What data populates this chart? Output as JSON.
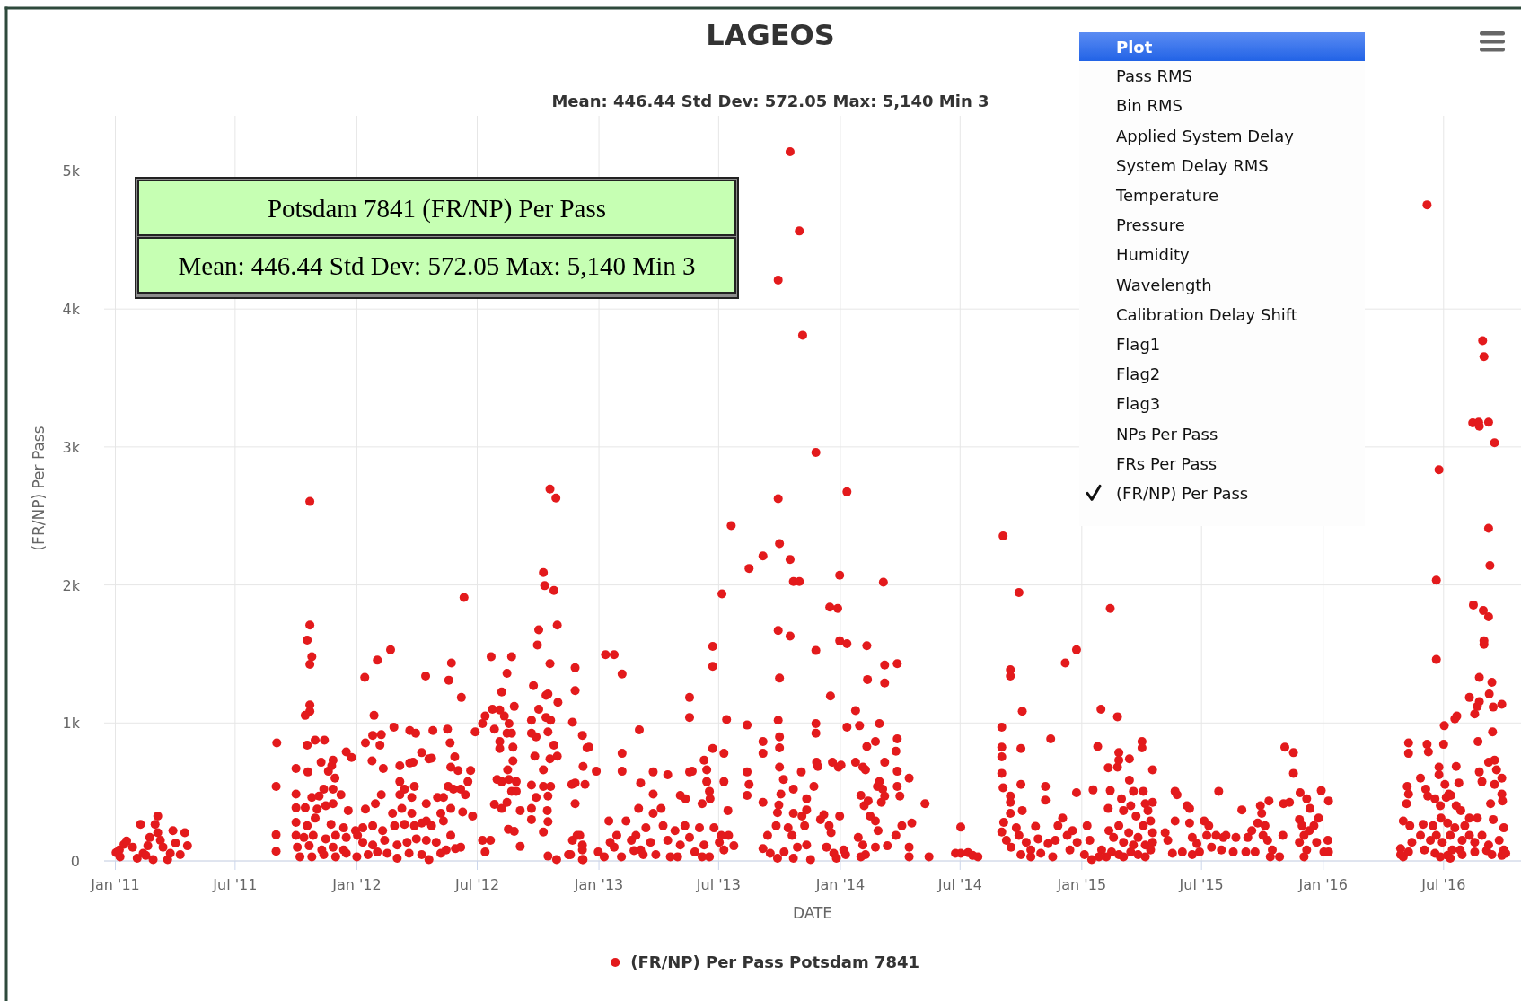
{
  "chart_data": {
    "type": "scatter",
    "title": "LAGEOS",
    "subtitle": "Mean: 446.44 Std Dev: 572.05 Max: 5,140 Min 3",
    "xlabel": "DATE",
    "ylabel": "(FR/NP) Per Pass",
    "annotations": [
      "Potsdam 7841 (FR/NP) Per Pass",
      "Mean: 446.44 Std Dev: 572.05 Max: 5,140 Min 3",
      "Plot",
      "Pass RMS",
      "Bin RMS",
      "Applied System Delay",
      "System Delay RMS",
      "Temperature",
      "Pressure",
      "Humidity",
      "Wavelength",
      "Calibration Delay Shift",
      "Flag1",
      "Flag2",
      "Flag3",
      "NPs Per Pass",
      "FRs Per Pass",
      "(FR/NP) Per Pass"
    ],
    "xlim": [
      "2010-12-15",
      "2016-10-26"
    ],
    "xticks": [
      {
        "value": "2011-01",
        "label": "Jan '11"
      },
      {
        "value": "2011-07",
        "label": "Jul '11"
      },
      {
        "value": "2012-01",
        "label": "Jan '12"
      },
      {
        "value": "2012-07",
        "label": "Jul '12"
      },
      {
        "value": "2013-01",
        "label": "Jan '13"
      },
      {
        "value": "2013-07",
        "label": "Jul '13"
      },
      {
        "value": "2014-01",
        "label": "Jan '14"
      },
      {
        "value": "2014-07",
        "label": "Jul '14"
      },
      {
        "value": "2015-01",
        "label": "Jan '15"
      },
      {
        "value": "2015-07",
        "label": "Jul '15"
      },
      {
        "value": "2016-01",
        "label": "Jan '16"
      },
      {
        "value": "2016-07",
        "label": "Jul '16"
      }
    ],
    "ylim": [
      0,
      5400
    ],
    "yticks": [
      0,
      {
        "value": 1000,
        "label": "1k"
      },
      {
        "value": 2000,
        "label": "2k"
      },
      {
        "value": 3000,
        "label": "3k"
      },
      {
        "value": 4000,
        "label": "4k"
      },
      {
        "value": 5000,
        "label": "5k"
      }
    ],
    "grid": true,
    "legend": "bottom",
    "marker": "circle",
    "series": [
      {
        "name": "(FR/NP) Per Pass Potsdam 7841",
        "color": "#e31a1c",
        "x": [
          "2011-01-02",
          "2011-01-07",
          "2011-01-08",
          "2011-01-14",
          "2011-01-18",
          "2011-01-27",
          "2011-02-03",
          "2011-02-08",
          "2011-02-12",
          "2011-02-16",
          "2011-02-19",
          "2011-02-22",
          "2011-02-27",
          "2011-03-02",
          "2011-03-06",
          "2011-03-06",
          "2011-03-10",
          "2011-03-14",
          "2011-03-21",
          "2011-03-25",
          "2011-03-29",
          "2011-04-02",
          "2011-04-09",
          "2011-04-16",
          "2011-04-20",
          "2011-09-02",
          "2011-09-01",
          "2011-09-01",
          "2011-09-01",
          "2011-10-22",
          "2011-10-22",
          "2011-10-18",
          "2011-10-25",
          "2011-10-22",
          "2011-10-22",
          "2011-10-22",
          "2011-10-15",
          "2011-10-18",
          "2011-10-30",
          "2011-11-13",
          "2011-10-01",
          "2011-10-19",
          "2011-11-08",
          "2011-11-19",
          "2011-11-26",
          "2011-10-01",
          "2011-10-25",
          "2011-11-05",
          "2011-11-12",
          "2011-11-29",
          "2011-11-26",
          "2011-12-08",
          "2011-10-01",
          "2011-10-15",
          "2011-11-02",
          "2011-11-15",
          "2011-11-26",
          "2011-12-19",
          "2011-10-01",
          "2011-10-18",
          "2011-10-30",
          "2011-11-23",
          "2011-12-12",
          "2011-10-01",
          "2011-10-13",
          "2011-10-27",
          "2011-11-15",
          "2011-11-30",
          "2011-12-16",
          "2011-12-30",
          "2011-10-03",
          "2011-10-21",
          "2011-11-09",
          "2011-11-26",
          "2011-12-12",
          "2012-01-02",
          "2011-10-07",
          "2011-10-25",
          "2011-11-12",
          "2011-11-30",
          "2011-12-16",
          "2012-01-01",
          "2011-12-16",
          "2011-12-24",
          "2011-11-24",
          "2012-01-13",
          "2012-02-01",
          "2012-02-21",
          "2012-01-27",
          "2012-01-14",
          "2012-01-25",
          "2012-02-07",
          "2012-02-05",
          "2012-02-26",
          "2012-01-24",
          "2012-02-10",
          "2012-03-06",
          "2012-03-21",
          "2012-03-30",
          "2012-04-25",
          "2012-04-14",
          "2012-05-23",
          "2012-05-19",
          "2012-05-17",
          "2012-05-21",
          "2012-05-28",
          "2012-05-22",
          "2012-06-07",
          "2012-06-11",
          "2012-06-02",
          "2012-06-21",
          "2012-03-21",
          "2012-03-26",
          "2012-04-08",
          "2012-04-19",
          "2012-04-23",
          "2012-03-06",
          "2012-03-13",
          "2012-03-28",
          "2012-03-06",
          "2012-03-24",
          "2012-04-15",
          "2012-05-02",
          "2012-05-11",
          "2012-05-18",
          "2012-05-26",
          "2012-06-06",
          "2012-06-13",
          "2012-06-17",
          "2012-01-14",
          "2012-01-29",
          "2012-02-07",
          "2012-02-24",
          "2012-03-09",
          "2012-03-24",
          "2012-04-15",
          "2012-05-07",
          "2012-05-22",
          "2012-06-09",
          "2012-06-24",
          "2012-01-10",
          "2012-01-25",
          "2012-02-09",
          "2012-02-27",
          "2012-03-13",
          "2012-03-28",
          "2012-04-08",
          "2012-04-23",
          "2012-05-11",
          "2012-05-22",
          "2012-06-06",
          "2012-01-10",
          "2012-01-25",
          "2012-02-12",
          "2012-03-02",
          "2012-03-17",
          "2012-03-31",
          "2012-04-15",
          "2012-04-30",
          "2012-05-15",
          "2012-05-29",
          "2012-01-18",
          "2012-02-01",
          "2012-02-16",
          "2012-03-02",
          "2012-03-20",
          "2012-04-08",
          "2012-04-19",
          "2012-05-07",
          "2012-07-09",
          "2012-06-28",
          "2012-07-13",
          "2012-07-24",
          "2012-08-04",
          "2012-08-11",
          "2012-08-18",
          "2012-08-22",
          "2012-07-22",
          "2012-08-22",
          "2012-08-15",
          "2012-08-07",
          "2012-08-26",
          "2012-07-27",
          "2012-08-04",
          "2012-08-04",
          "2012-08-15",
          "2012-08-24",
          "2012-08-24",
          "2012-08-16",
          "2012-07-31",
          "2012-08-07",
          "2012-08-18",
          "2012-08-29",
          "2012-07-27",
          "2012-08-07",
          "2012-08-15",
          "2012-08-22",
          "2012-08-29",
          "2012-09-04",
          "2012-08-17",
          "2012-08-26",
          "2012-09-04",
          "2012-07-09",
          "2012-07-21",
          "2012-07-13",
          "2012-09-24",
          "2012-09-30",
          "2012-10-02",
          "2012-10-09",
          "2012-10-11",
          "2012-10-25",
          "2012-10-30",
          "2012-10-19",
          "2012-10-28",
          "2012-10-19",
          "2012-10-13",
          "2012-10-16",
          "2012-10-31",
          "2012-10-02",
          "2012-09-21",
          "2012-10-13",
          "2012-10-20",
          "2012-09-21",
          "2012-09-28",
          "2012-10-16",
          "2012-10-25",
          "2012-10-30",
          "2012-09-26",
          "2012-10-09",
          "2012-10-19",
          "2012-09-21",
          "2012-09-28",
          "2012-09-21",
          "2012-09-21",
          "2012-10-09",
          "2012-10-20",
          "2012-10-16",
          "2012-10-15",
          "2012-10-16",
          "2012-10-09",
          "2012-10-16",
          "2012-10-29",
          "2012-11-19",
          "2012-11-26",
          "2012-11-26",
          "2012-11-22",
          "2012-12-07",
          "2012-11-26",
          "2012-11-26",
          "2012-12-03",
          "2012-12-07",
          "2012-12-08",
          "2012-11-22",
          "2012-12-08",
          "2012-12-14",
          "2012-12-17",
          "2012-12-28",
          "2012-12-11",
          "2012-11-21",
          "2012-11-29",
          "2012-12-07",
          "2012-12-07",
          "2012-11-16",
          "2012-12-31",
          "2013-01-09",
          "2013-01-11",
          "2013-01-24",
          "2013-02-05",
          "2013-02-05",
          "2013-02-05",
          "2013-03-03",
          "2013-03-05",
          "2013-03-24",
          "2013-04-15",
          "2013-03-24",
          "2013-04-05",
          "2013-05-04",
          "2013-05-12",
          "2013-05-18",
          "2013-05-18",
          "2013-05-18",
          "2013-05-22",
          "2013-06-06",
          "2013-06-09",
          "2013-06-13",
          "2013-06-13",
          "2013-06-17",
          "2013-06-18",
          "2013-06-22",
          "2013-06-22",
          "2013-06-22",
          "2013-07-06",
          "2013-07-09",
          "2013-07-13",
          "2013-07-15",
          "2013-07-20",
          "2013-07-09",
          "2013-01-16",
          "2013-01-28",
          "2013-01-24",
          "2013-02-11",
          "2013-02-04",
          "2013-02-19",
          "2013-03-02",
          "2013-02-26",
          "2013-03-05",
          "2013-03-13",
          "2013-03-20",
          "2013-03-28",
          "2013-03-24",
          "2013-04-08",
          "2013-04-15",
          "2013-04-19",
          "2013-04-26",
          "2013-05-04",
          "2013-05-11",
          "2013-05-18",
          "2013-05-26",
          "2013-06-02",
          "2013-06-09",
          "2013-06-17",
          "2013-06-24",
          "2013-07-02",
          "2013-07-09",
          "2013-07-16",
          "2013-07-24",
          "2013-01-18",
          "2013-03-09",
          "2013-04-30",
          "2013-06-06",
          "2013-07-05",
          "2013-02-23",
          "2013-10-17",
          "2013-10-31",
          "2013-09-29",
          "2013-11-05",
          "2013-11-25",
          "2014-01-11",
          "2013-09-29",
          "2013-10-01",
          "2013-09-06",
          "2013-08-16",
          "2013-10-17",
          "2013-10-22",
          "2013-10-31",
          "2013-12-31",
          "2014-03-07",
          "2013-12-16",
          "2013-12-28",
          "2013-09-29",
          "2013-10-17",
          "2013-11-25",
          "2013-12-31",
          "2014-01-11",
          "2014-02-10",
          "2014-03-09",
          "2014-03-28",
          "2014-03-09",
          "2014-02-11",
          "2013-10-01",
          "2013-12-17",
          "2013-08-13",
          "2013-09-29",
          "2013-11-25",
          "2013-11-25",
          "2014-01-11",
          "2014-01-30",
          "2014-01-24",
          "2014-03-01",
          "2013-09-06",
          "2013-09-06",
          "2013-10-01",
          "2013-10-01",
          "2014-02-10",
          "2014-02-23",
          "2014-03-28",
          "2014-03-26",
          "2013-08-13",
          "2013-08-16",
          "2013-08-13",
          "2013-09-06",
          "2013-10-01",
          "2013-10-07",
          "2013-10-03",
          "2013-09-30",
          "2013-09-28",
          "2013-09-26",
          "2013-09-13",
          "2013-09-06",
          "2013-09-17",
          "2013-09-28",
          "2013-10-08",
          "2013-10-14",
          "2013-10-22",
          "2013-10-22",
          "2013-10-20",
          "2013-10-28",
          "2013-10-22",
          "2013-11-03",
          "2013-11-04",
          "2013-11-08",
          "2013-11-11",
          "2013-11-11",
          "2013-11-11",
          "2013-11-17",
          "2013-11-22",
          "2013-11-26",
          "2013-11-28",
          "2013-12-02",
          "2013-12-07",
          "2013-12-11",
          "2013-12-15",
          "2013-12-18",
          "2013-12-20",
          "2013-12-29",
          "2014-01-02",
          "2013-12-31",
          "2013-12-22",
          "2013-12-26",
          "2014-01-06",
          "2014-01-09",
          "2014-01-24",
          "2014-02-04",
          "2014-02-08",
          "2014-02-01",
          "2014-02-06",
          "2014-02-12",
          "2014-02-15",
          "2014-01-28",
          "2014-02-04",
          "2014-02-08",
          "2014-02-01",
          "2014-02-23",
          "2014-02-26",
          "2014-03-01",
          "2014-03-06",
          "2014-03-09",
          "2014-03-04",
          "2014-02-23",
          "2014-02-27",
          "2014-03-13",
          "2014-03-09",
          "2014-03-28",
          "2014-04-01",
          "2014-03-28",
          "2014-04-04",
          "2014-03-26",
          "2014-04-15",
          "2014-04-19",
          "2014-04-15",
          "2014-04-15",
          "2014-05-09",
          "2014-05-15",
          "2014-07-02",
          "2014-06-24",
          "2014-07-02",
          "2014-07-13",
          "2014-07-20",
          "2014-07-28",
          "2014-09-04",
          "2014-09-28",
          "2014-09-15",
          "2014-09-15",
          "2014-10-03",
          "2014-09-02",
          "2014-09-02",
          "2014-09-02",
          "2014-09-02",
          "2014-09-04",
          "2014-09-15",
          "2014-09-15",
          "2014-09-15",
          "2014-09-05",
          "2014-09-02",
          "2014-10-01",
          "2014-10-01",
          "2014-10-03",
          "2014-09-09",
          "2014-09-16",
          "2014-09-28",
          "2014-10-01",
          "2014-10-09",
          "2014-10-16",
          "2014-10-23",
          "2014-10-27",
          "2014-10-31",
          "2014-11-07",
          "2014-11-07",
          "2014-11-11",
          "2014-11-15",
          "2014-11-18",
          "2014-11-22",
          "2014-11-26",
          "2014-12-03",
          "2014-12-07",
          "2014-12-10",
          "2014-12-14",
          "2014-12-18",
          "2014-12-24",
          "2014-12-24",
          "2014-12-25",
          "2015-01-05",
          "2015-01-09",
          "2015-01-13",
          "2015-01-16",
          "2014-10-16",
          "2014-09-24",
          "2015-01-30",
          "2015-02-13",
          "2015-02-24",
          "2015-01-25",
          "2015-01-18",
          "2015-02-10",
          "2015-02-24",
          "2015-02-26",
          "2015-02-26",
          "2015-03-14",
          "2015-03-14",
          "2015-04-02",
          "2015-04-02",
          "2015-04-04",
          "2015-04-18",
          "2015-02-10",
          "2015-02-13",
          "2015-03-02",
          "2015-03-05",
          "2015-03-16",
          "2015-03-20",
          "2015-03-24",
          "2015-04-07",
          "2015-04-11",
          "2015-04-18",
          "2015-04-15",
          "2015-04-04",
          "2015-04-18",
          "2015-02-11",
          "2015-02-18",
          "2015-02-26",
          "2015-03-05",
          "2015-03-13",
          "2015-03-20",
          "2015-03-27",
          "2015-04-07",
          "2015-04-18",
          "2015-01-31",
          "2015-02-07",
          "2015-02-15",
          "2015-02-26",
          "2015-03-05",
          "2015-03-16",
          "2015-03-27",
          "2015-04-07",
          "2015-04-15",
          "2015-01-27",
          "2015-05-07",
          "2015-05-11",
          "2015-05-18",
          "2015-05-22",
          "2015-05-25",
          "2015-05-22",
          "2015-06-02",
          "2015-06-09",
          "2015-06-13",
          "2015-06-13",
          "2015-06-17",
          "2015-06-17",
          "2015-06-24",
          "2015-06-28",
          "2015-07-05",
          "2015-07-09",
          "2015-07-12",
          "2015-07-16",
          "2015-07-23",
          "2015-07-27",
          "2015-07-31",
          "2015-08-03",
          "2015-08-07",
          "2015-08-18",
          "2015-08-22",
          "2015-08-31",
          "2015-09-06",
          "2015-09-09",
          "2015-09-15",
          "2015-09-20",
          "2015-09-24",
          "2015-09-28",
          "2015-09-30",
          "2015-10-02",
          "2015-10-05",
          "2015-10-09",
          "2015-10-11",
          "2015-10-13",
          "2015-10-16",
          "2015-10-27",
          "2015-11-01",
          "2015-11-02",
          "2015-11-04",
          "2015-11-11",
          "2015-11-17",
          "2015-11-17",
          "2015-11-26",
          "2015-11-27",
          "2015-11-30",
          "2015-12-03",
          "2015-12-07",
          "2015-12-07",
          "2015-12-11",
          "2015-12-12",
          "2015-12-18",
          "2015-12-22",
          "2015-12-25",
          "2015-12-29",
          "2016-01-02",
          "2016-01-08",
          "2016-01-09",
          "2016-01-09",
          "2015-11-26",
          "2015-12-03",
          "2016-06-06",
          "2016-08-29",
          "2016-08-31",
          "2016-08-14",
          "2016-08-23",
          "2016-08-24",
          "2016-09-07",
          "2016-09-16",
          "2016-06-24",
          "2016-09-07",
          "2016-09-09",
          "2016-06-20",
          "2016-08-15",
          "2016-08-30",
          "2016-09-07",
          "2016-08-31",
          "2016-08-31",
          "2016-06-20",
          "2016-08-24",
          "2016-09-12",
          "2016-08-09",
          "2016-08-24",
          "2016-08-21",
          "2016-08-17",
          "2016-09-08",
          "2016-09-14",
          "2016-09-27",
          "2016-07-21",
          "2016-07-18",
          "2016-07-02",
          "2016-08-22",
          "2016-09-13",
          "2016-05-09",
          "2016-05-09",
          "2016-06-06",
          "2016-06-08",
          "2016-07-01",
          "2016-06-24",
          "2016-06-24",
          "2016-07-20",
          "2016-05-27",
          "2016-05-07",
          "2016-05-09",
          "2016-06-04",
          "2016-06-07",
          "2016-07-03",
          "2016-07-09",
          "2016-07-24",
          "2016-06-18",
          "2016-06-26",
          "2016-07-05",
          "2016-07-12",
          "2016-07-20",
          "2016-07-27",
          "2016-08-24",
          "2016-08-28",
          "2016-09-07",
          "2016-09-16",
          "2016-09-19",
          "2016-09-27",
          "2016-09-16",
          "2016-09-27",
          "2016-09-10",
          "2016-09-28",
          "2016-05-06",
          "2016-05-01",
          "2016-05-11",
          "2016-05-31",
          "2016-06-15",
          "2016-06-27",
          "2016-07-07",
          "2016-07-18",
          "2016-08-02",
          "2016-08-09",
          "2016-08-21",
          "2016-09-14",
          "2016-09-30",
          "2016-05-14",
          "2016-05-27",
          "2016-06-11",
          "2016-06-20",
          "2016-06-29",
          "2016-07-11",
          "2016-07-29",
          "2016-08-09",
          "2016-08-17",
          "2016-08-28",
          "2016-09-07",
          "2016-09-23",
          "2016-04-27",
          "2016-05-01",
          "2016-05-09",
          "2016-06-02",
          "2016-06-18",
          "2016-07-07",
          "2016-07-14",
          "2016-07-26",
          "2016-08-17",
          "2016-09-04",
          "2016-09-30",
          "2016-04-27",
          "2016-06-26",
          "2016-07-11",
          "2016-07-29",
          "2016-09-12",
          "2016-09-27",
          "2016-10-03"
        ],
        "values": [
          60,
          80,
          30,
          120,
          145,
          100,
          20,
          265,
          55,
          40,
          110,
          170,
          10,
          265,
          325,
          205,
          150,
          100,
          10,
          55,
          220,
          130,
          45,
          205,
          110,
          855,
          540,
          190,
          70,
          2605,
          1710,
          1600,
          1480,
          1425,
          1130,
          1085,
          1055,
          840,
          875,
          875,
          670,
          645,
          715,
          650,
          730,
          485,
          460,
          470,
          520,
          600,
          520,
          480,
          385,
          385,
          375,
          400,
          415,
          365,
          280,
          255,
          310,
          265,
          240,
          185,
          170,
          185,
          160,
          185,
          170,
          220,
          100,
          110,
          80,
          100,
          80,
          185,
          30,
          30,
          45,
          30,
          55,
          30,
          790,
          750,
          690,
          1330,
          1455,
          1530,
          1055,
          855,
          910,
          915,
          840,
          970,
          725,
          670,
          690,
          945,
          925,
          945,
          1340,
          1435,
          1310,
          955,
          855,
          755,
          680,
          1185,
          1910,
          655,
          655,
          710,
          715,
          785,
          740,
          745,
          575,
          520,
          540,
          480,
          460,
          415,
          460,
          460,
          540,
          520,
          520,
          480,
          575,
          375,
          415,
          480,
          345,
          380,
          345,
          290,
          345,
          380,
          355,
          325,
          240,
          255,
          220,
          255,
          265,
          255,
          275,
          255,
          290,
          185,
          100,
          135,
          115,
          150,
          115,
          135,
          160,
          150,
          135,
          80,
          90,
          45,
          65,
          55,
          20,
          55,
          45,
          10,
          55,
          995,
          935,
          1050,
          1100,
          1095,
          1050,
          995,
          925,
          1480,
          1480,
          1360,
          1225,
          1120,
          955,
          865,
          815,
          925,
          825,
          725,
          660,
          590,
          575,
          590,
          575,
          410,
          380,
          425,
          505,
          505,
          365,
          230,
          215,
          105,
          150,
          150,
          65,
          1270,
          1565,
          1675,
          2090,
          1995,
          1960,
          1710,
          2695,
          2630,
          1430,
          1200,
          1210,
          1150,
          1100,
          1020,
          1040,
          1020,
          925,
          900,
          935,
          840,
          760,
          760,
          660,
          740,
          550,
          460,
          380,
          300,
          540,
          540,
          470,
          365,
          285,
          210,
          35,
          10,
          45,
          1400,
          1235,
          1005,
          910,
          565,
          415,
          185,
          80,
          10,
          150,
          685,
          820,
          825,
          650,
          555,
          555,
          185,
          115,
          10,
          45,
          65,
          30,
          1495,
          1495,
          1355,
          780,
          650,
          950,
          565,
          645,
          625,
          485,
          380,
          475,
          450,
          1185,
          1040,
          645,
          650,
          415,
          730,
          660,
          575,
          505,
          450,
          1555,
          1410,
          815,
          1935,
          780,
          1025,
          365,
          2430,
          575,
          290,
          185,
          100,
          290,
          30,
          150,
          380,
          185,
          80,
          240,
          135,
          45,
          345,
          255,
          150,
          30,
          220,
          115,
          255,
          170,
          65,
          240,
          115,
          30,
          240,
          135,
          80,
          185,
          110,
          135,
          45,
          30,
          30,
          185,
          75,
          5140,
          4565,
          4210,
          3810,
          2960,
          2675,
          2625,
          2300,
          2210,
          2120,
          2185,
          2025,
          2025,
          2070,
          2020,
          1840,
          1830,
          1670,
          1630,
          1525,
          1595,
          1575,
          1560,
          1420,
          1430,
          1290,
          1315,
          1325,
          1195,
          985,
          1020,
          995,
          925,
          970,
          980,
          1090,
          995,
          865,
          780,
          900,
          820,
          830,
          865,
          885,
          795,
          645,
          555,
          475,
          425,
          680,
          590,
          485,
          405,
          350,
          255,
          185,
          90,
          55,
          20,
          65,
          240,
          520,
          345,
          185,
          100,
          20,
          645,
          325,
          255,
          370,
          450,
          115,
          10,
          540,
          715,
          685,
          300,
          335,
          100,
          255,
          205,
          715,
          680,
          695,
          325,
          55,
          20,
          80,
          45,
          715,
          680,
          660,
          475,
          400,
          435,
          325,
          170,
          115,
          45,
          30,
          100,
          540,
          575,
          520,
          470,
          425,
          290,
          220,
          110,
          715,
          650,
          470,
          540,
          255,
          185,
          600,
          275,
          100,
          30,
          415,
          30,
          245,
          55,
          55,
          60,
          40,
          30,
          2355,
          1945,
          1385,
          1340,
          1085,
          970,
          825,
          755,
          635,
          530,
          470,
          425,
          345,
          280,
          210,
          815,
          555,
          365,
          150,
          100,
          185,
          45,
          135,
          80,
          250,
          160,
          55,
          540,
          440,
          125,
          885,
          30,
          150,
          255,
          310,
          1435,
          185,
          80,
          220,
          495,
          1530,
          135,
          45,
          255,
          150,
          10,
          30,
          240,
          1100,
          1830,
          1045,
          830,
          515,
          675,
          680,
          785,
          730,
          740,
          585,
          865,
          820,
          505,
          660,
          380,
          510,
          450,
          365,
          400,
          505,
          325,
          415,
          365,
          425,
          290,
          255,
          205,
          220,
          170,
          255,
          135,
          205,
          115,
          170,
          115,
          135,
          80,
          30,
          65,
          45,
          30,
          65,
          45,
          30,
          80,
          30,
          205,
          150,
          55,
          505,
          480,
          290,
          65,
          400,
          380,
          275,
          170,
          45,
          125,
          65,
          290,
          185,
          255,
          100,
          185,
          505,
          80,
          170,
          185,
          65,
          170,
          370,
          65,
          170,
          220,
          65,
          275,
          400,
          345,
          185,
          255,
          150,
          435,
          30,
          80,
          30,
          185,
          415,
          825,
          425,
          785,
          635,
          300,
          495,
          255,
          185,
          450,
          80,
          220,
          380,
          255,
          135,
          310,
          510,
          65,
          150,
          435,
          65,
          135,
          30,
          4755,
          3770,
          3655,
          3175,
          3180,
          3150,
          3180,
          3030,
          2835,
          2410,
          2140,
          2035,
          1855,
          1815,
          1770,
          1595,
          1570,
          1460,
          1330,
          1295,
          1185,
          1155,
          1120,
          1065,
          1210,
          1115,
          1135,
          1050,
          1030,
          980,
          865,
          935,
          855,
          780,
          845,
          790,
          845,
          680,
          625,
          685,
          600,
          540,
          485,
          520,
          470,
          555,
          485,
          565,
          450,
          400,
          460,
          475,
          400,
          365,
          645,
          575,
          715,
          730,
          660,
          600,
          555,
          485,
          415,
          435,
          415,
          290,
          255,
          265,
          255,
          310,
          275,
          240,
          255,
          310,
          310,
          300,
          240,
          135,
          185,
          150,
          185,
          135,
          185,
          150,
          185,
          135,
          185,
          115,
          150,
          90,
          30,
          65,
          80,
          55,
          40,
          80,
          80,
          65,
          75,
          80,
          45,
          30,
          20,
          45,
          45,
          40,
          55
        ]
      }
    ]
  }
}
